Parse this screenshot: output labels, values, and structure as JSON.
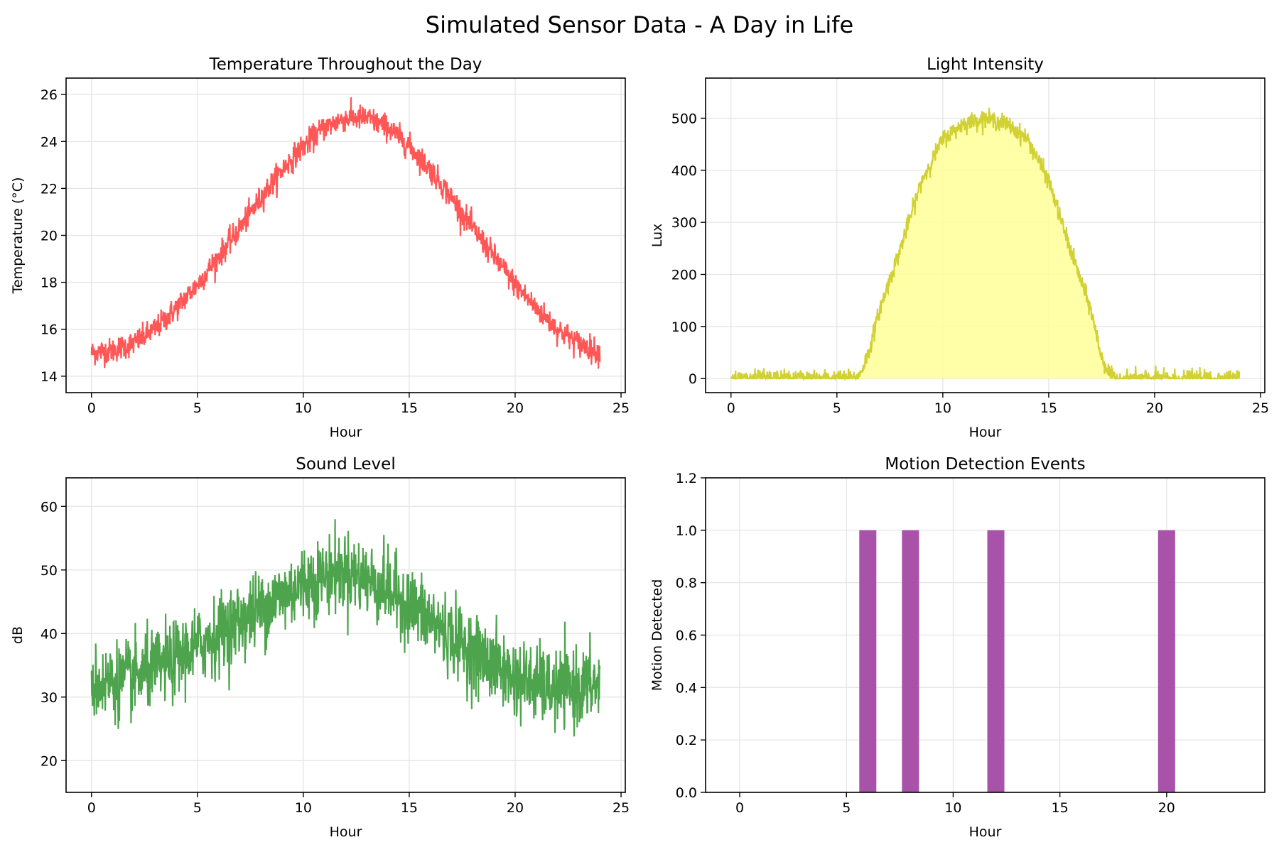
{
  "figure": {
    "title": "Simulated Sensor Data - A Day in Life"
  },
  "chart_data": [
    {
      "type": "line",
      "title": "Temperature Throughout the Day",
      "xlabel": "Hour",
      "ylabel": "Temperature (°C)",
      "xlim": [
        -1.2,
        25.2
      ],
      "ylim": [
        13.3,
        26.7
      ],
      "xticks": [
        0,
        5,
        10,
        15,
        20,
        25
      ],
      "yticks": [
        14,
        16,
        18,
        20,
        22,
        24,
        26
      ],
      "grid": true,
      "color": "#ff4444",
      "series": [
        {
          "x": [
            0,
            1,
            2,
            3,
            4,
            5,
            6,
            7,
            8,
            9,
            10,
            11,
            12,
            13,
            14,
            15,
            16,
            17,
            18,
            19,
            20,
            21,
            22,
            23,
            24
          ],
          "y": [
            15.0,
            15.1,
            15.4,
            16.0,
            16.9,
            17.9,
            19.1,
            20.3,
            21.6,
            22.8,
            23.8,
            24.6,
            25.0,
            25.0,
            24.6,
            23.8,
            22.8,
            21.6,
            20.3,
            19.1,
            17.9,
            16.9,
            16.0,
            15.4,
            15.0
          ],
          "noise": 0.45
        }
      ]
    },
    {
      "type": "area",
      "title": "Light Intensity",
      "xlabel": "Hour",
      "ylabel": "Lux",
      "xlim": [
        -1.2,
        25.2
      ],
      "ylim": [
        -27,
        577
      ],
      "xticks": [
        0,
        5,
        10,
        15,
        20,
        25
      ],
      "yticks": [
        0,
        100,
        200,
        300,
        400,
        500
      ],
      "grid": true,
      "color": "#cccc22",
      "fill_color": "#ffff99",
      "series": [
        {
          "x": [
            0,
            6,
            6.5,
            7,
            8,
            9,
            10,
            11,
            12,
            13,
            14,
            15,
            16,
            17,
            17.5,
            18,
            24
          ],
          "y": [
            0,
            0,
            50,
            130,
            250,
            380,
            460,
            490,
            500,
            490,
            460,
            380,
            250,
            130,
            40,
            0,
            0
          ],
          "noise": 14
        }
      ]
    },
    {
      "type": "line",
      "title": "Sound Level",
      "xlabel": "Hour",
      "ylabel": "dB",
      "xlim": [
        -1.2,
        25.2
      ],
      "ylim": [
        15,
        64.5
      ],
      "xticks": [
        0,
        5,
        10,
        15,
        20,
        25
      ],
      "yticks": [
        20,
        30,
        40,
        50,
        60
      ],
      "grid": true,
      "color": "#3a9a3a",
      "series": [
        {
          "x": [
            0,
            2,
            4,
            6,
            8,
            10,
            12,
            14,
            16,
            18,
            20,
            22,
            24
          ],
          "y": [
            32,
            33,
            36,
            40,
            44,
            48,
            50,
            47,
            42,
            37,
            33,
            31,
            32
          ],
          "noise": 5
        }
      ]
    },
    {
      "type": "bar",
      "title": "Motion Detection Events",
      "xlabel": "Hour",
      "ylabel": "Motion Detected",
      "xlim": [
        -1.6,
        24.6
      ],
      "ylim": [
        0,
        1.2
      ],
      "xticks": [
        0,
        5,
        10,
        15,
        20
      ],
      "yticks": [
        "0.0",
        "0.2",
        "0.4",
        "0.6",
        "0.8",
        "1.0",
        "1.2"
      ],
      "grid": true,
      "color": "#a349a4",
      "categories": [
        6,
        8,
        12,
        20
      ],
      "values": [
        1.0,
        1.0,
        1.0,
        1.0
      ]
    }
  ]
}
